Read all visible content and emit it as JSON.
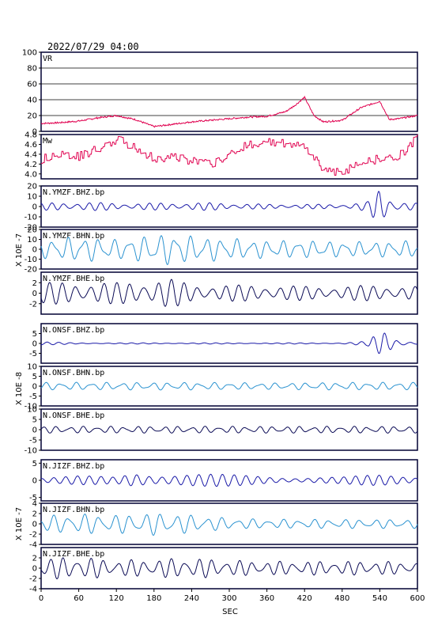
{
  "header": {
    "timestamp": "2022/07/29 04:00"
  },
  "colors": {
    "frame": "#000033",
    "vr": "#e0004f",
    "grid": "#000000",
    "z": "#1a1aa8",
    "n": "#2a92d0",
    "e": "#0a0a55"
  },
  "x_axis": {
    "label": "SEC",
    "ticks": [
      "0",
      "60",
      "120",
      "180",
      "240",
      "300",
      "360",
      "420",
      "480",
      "540",
      "600"
    ],
    "range": [
      0,
      600
    ]
  },
  "chart_data": [
    {
      "type": "line",
      "name_label": "VR",
      "ylim": [
        0,
        100
      ],
      "yticks": [
        "0",
        "20",
        "40",
        "60",
        "80",
        "100"
      ],
      "grid": true,
      "x": [
        0,
        30,
        60,
        90,
        120,
        150,
        180,
        210,
        240,
        270,
        300,
        330,
        360,
        390,
        405,
        420,
        435,
        450,
        480,
        510,
        540,
        555,
        570,
        585,
        600
      ],
      "values": [
        10,
        11,
        13,
        17,
        20,
        15,
        6,
        9,
        12,
        14,
        16,
        18,
        19,
        25,
        33,
        43,
        20,
        12,
        14,
        30,
        38,
        15,
        16,
        18,
        20
      ]
    },
    {
      "type": "line",
      "name_label": "Mw",
      "ylim": [
        3.9,
        4.8
      ],
      "yticks": [
        "4.0",
        "4.2",
        "4.4",
        "4.6",
        "4.8"
      ],
      "x": [
        0,
        30,
        60,
        90,
        120,
        150,
        180,
        210,
        240,
        270,
        300,
        330,
        360,
        390,
        420,
        450,
        480,
        510,
        540,
        570,
        600
      ],
      "values": [
        4.3,
        4.4,
        4.35,
        4.5,
        4.7,
        4.55,
        4.3,
        4.35,
        4.25,
        4.2,
        4.4,
        4.6,
        4.65,
        4.6,
        4.55,
        4.1,
        4.0,
        4.25,
        4.3,
        4.35,
        4.75
      ]
    },
    {
      "type": "line",
      "name_label": "N.YMZF.BHZ.bp",
      "group": 0,
      "ylim": [
        -20,
        20
      ],
      "yticks": [
        "-20",
        "-10",
        "0",
        "10",
        "20"
      ],
      "amp": 0.35,
      "envelope": {
        "x": [
          0,
          60,
          120,
          180,
          240,
          300,
          360,
          420,
          480,
          520,
          540,
          560,
          600
        ],
        "y": [
          0.3,
          0.4,
          0.3,
          0.3,
          0.35,
          0.3,
          0.2,
          0.2,
          0.2,
          0.4,
          1.6,
          0.6,
          0.3
        ]
      }
    },
    {
      "type": "line",
      "name_label": "N.YMZF.BHN.bp",
      "group": 0,
      "ylim": [
        -20,
        20
      ],
      "yticks": [
        "-20",
        "-10",
        "0",
        "10",
        "20"
      ],
      "amp": 0.8,
      "envelope": {
        "x": [
          0,
          60,
          120,
          180,
          210,
          240,
          300,
          360,
          420,
          480,
          540,
          600
        ],
        "y": [
          0.8,
          1.2,
          0.9,
          1.3,
          1.5,
          1.2,
          1.0,
          0.8,
          0.8,
          0.7,
          0.7,
          0.8
        ]
      }
    },
    {
      "type": "line",
      "name_label": "N.YMZF.BHE.bp",
      "group": 0,
      "ylim": [
        -4,
        4
      ],
      "yticks": [
        "-2",
        "0",
        "2"
      ],
      "amp": 0.8,
      "envelope": {
        "x": [
          0,
          60,
          120,
          180,
          200,
          240,
          300,
          360,
          420,
          480,
          540,
          600
        ],
        "y": [
          0.9,
          1.0,
          0.9,
          1.2,
          1.3,
          0.8,
          0.7,
          0.7,
          0.6,
          0.6,
          0.7,
          0.6
        ]
      }
    },
    {
      "type": "line",
      "name_label": "N.ONSF.BHZ.bp",
      "group": 1,
      "ylim": [
        -10,
        10
      ],
      "yticks": [
        "-5",
        "0",
        "5"
      ],
      "amp": 0.1,
      "envelope": {
        "x": [
          0,
          60,
          120,
          180,
          240,
          300,
          360,
          420,
          480,
          520,
          545,
          570,
          600
        ],
        "y": [
          0.15,
          0.05,
          0.05,
          0.05,
          0.05,
          0.05,
          0.05,
          0.05,
          0.05,
          0.2,
          1.3,
          0.4,
          0.1
        ]
      }
    },
    {
      "type": "line",
      "name_label": "N.ONSF.BHN.bp",
      "group": 1,
      "ylim": [
        -10,
        10
      ],
      "yticks": [
        "-10",
        "-5",
        "0",
        "5",
        "10"
      ],
      "amp": 0.35,
      "envelope": {
        "x": [
          0,
          120,
          240,
          360,
          480,
          600
        ],
        "y": [
          0.35,
          0.35,
          0.35,
          0.3,
          0.35,
          0.35
        ]
      }
    },
    {
      "type": "line",
      "name_label": "N.ONSF.BHE.bp",
      "group": 1,
      "ylim": [
        -10,
        10
      ],
      "yticks": [
        "-10",
        "-5",
        "0",
        "5",
        "10"
      ],
      "amp": 0.3,
      "envelope": {
        "x": [
          0,
          120,
          240,
          360,
          480,
          600
        ],
        "y": [
          0.3,
          0.3,
          0.3,
          0.3,
          0.3,
          0.3
        ]
      }
    },
    {
      "type": "line",
      "name_label": "N.JIZF.BHZ.bp",
      "group": 2,
      "ylim": [
        -6,
        6
      ],
      "yticks": [
        "-5",
        "0",
        "5"
      ],
      "amp": 0.4,
      "envelope": {
        "x": [
          0,
          60,
          120,
          150,
          180,
          240,
          300,
          360,
          420,
          480,
          540,
          600
        ],
        "y": [
          0.3,
          0.4,
          0.3,
          0.8,
          0.7,
          0.6,
          0.5,
          0.4,
          0.3,
          0.3,
          0.5,
          0.4
        ]
      }
    },
    {
      "type": "line",
      "name_label": "N.JIZF.BHN.bp",
      "group": 2,
      "ylim": [
        -4,
        4
      ],
      "yticks": [
        "-4",
        "-2",
        "0",
        "2",
        "4"
      ],
      "amp": 0.7,
      "envelope": {
        "x": [
          0,
          60,
          120,
          180,
          240,
          300,
          360,
          420,
          480,
          540,
          600
        ],
        "y": [
          0.7,
          0.9,
          0.8,
          1.0,
          0.8,
          0.5,
          0.4,
          0.4,
          0.4,
          0.4,
          0.4
        ]
      }
    },
    {
      "type": "line",
      "name_label": "N.JIZF.BHE.bp",
      "group": 2,
      "ylim": [
        -4,
        4
      ],
      "yticks": [
        "-4",
        "-2",
        "0",
        "2"
      ],
      "amp": 0.8,
      "envelope": {
        "x": [
          0,
          60,
          120,
          180,
          240,
          300,
          360,
          420,
          480,
          540,
          600
        ],
        "y": [
          0.9,
          1.0,
          0.7,
          0.8,
          0.9,
          0.7,
          0.6,
          0.6,
          0.6,
          0.6,
          0.5
        ]
      }
    }
  ],
  "group_labels": [
    "X 10E -7",
    "X 10E -8",
    "X 10E -7"
  ]
}
